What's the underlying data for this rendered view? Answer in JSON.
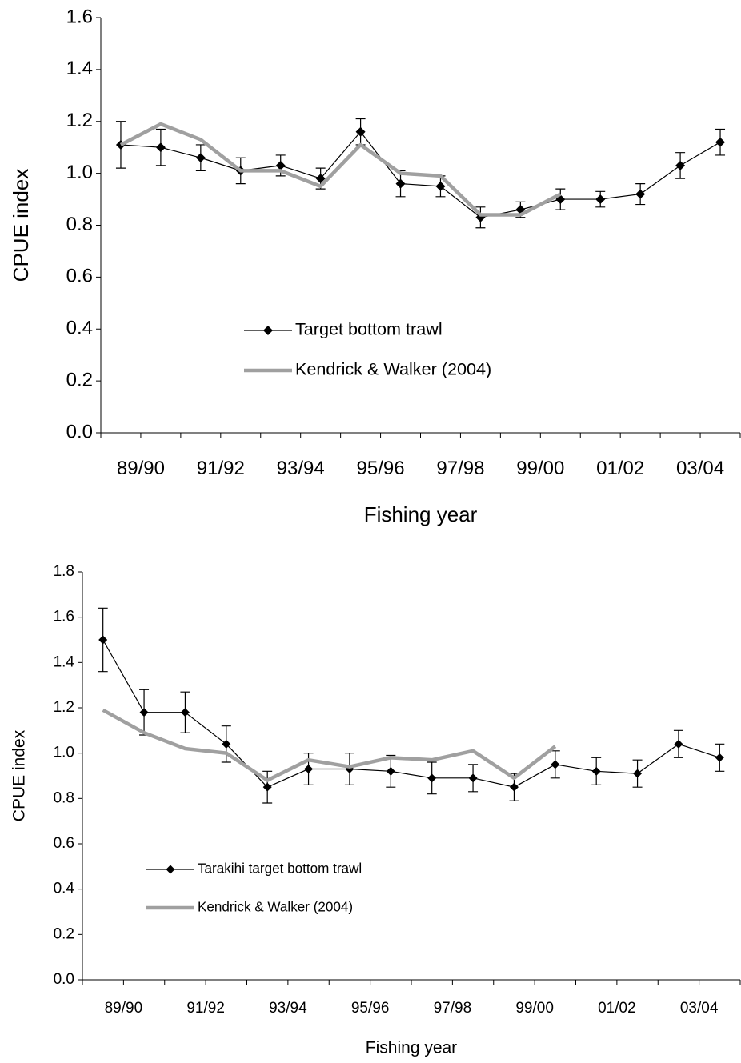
{
  "chart_data": [
    {
      "type": "line",
      "x_label": "Fishing year",
      "y_label": "CPUE index",
      "categories": [
        "89/90",
        null,
        "91/92",
        null,
        "93/94",
        null,
        "95/96",
        null,
        "97/98",
        null,
        "99/00",
        null,
        "01/02",
        null,
        "03/04",
        null
      ],
      "ylim": [
        0,
        1.6
      ],
      "yticks": [
        {
          "value": 0,
          "label": "0.0"
        },
        {
          "value": 0.2,
          "label": "0.2"
        },
        {
          "value": 0.4,
          "label": "0.4"
        },
        {
          "value": 0.6,
          "label": "0.6"
        },
        {
          "value": 0.8,
          "label": "0.8"
        },
        {
          "value": 1,
          "label": "1.0"
        },
        {
          "value": 1.2,
          "label": "1.2"
        },
        {
          "value": 1.4,
          "label": "1.4"
        },
        {
          "value": 1.6,
          "label": "1.6"
        }
      ],
      "series": [
        {
          "name": "Target bottom trawl",
          "color": "#000000",
          "marker": "diamond",
          "values": [
            1.11,
            1.1,
            1.06,
            1.01,
            1.03,
            0.98,
            1.16,
            0.96,
            0.95,
            0.83,
            0.86,
            0.9,
            0.9,
            0.92,
            1.03,
            1.12
          ],
          "errors": [
            0.09,
            0.07,
            0.05,
            0.05,
            0.04,
            0.04,
            0.05,
            0.05,
            0.04,
            0.04,
            0.03,
            0.04,
            0.03,
            0.04,
            0.05,
            0.05
          ]
        },
        {
          "name": "Kendrick & Walker (2004)",
          "color": "#a0a0a0",
          "values": [
            1.11,
            1.19,
            1.13,
            1.01,
            1.01,
            0.95,
            1.11,
            1.0,
            0.99,
            0.84,
            0.84,
            0.92,
            null,
            null,
            null,
            null
          ]
        }
      ]
    },
    {
      "type": "line",
      "x_label": "Fishing year",
      "y_label": "CPUE index",
      "categories": [
        "89/90",
        null,
        "91/92",
        null,
        "93/94",
        null,
        "95/96",
        null,
        "97/98",
        null,
        "99/00",
        null,
        "01/02",
        null,
        "03/04",
        null
      ],
      "ylim": [
        0,
        1.8
      ],
      "yticks": [
        {
          "value": 0,
          "label": "0.0"
        },
        {
          "value": 0.2,
          "label": "0.2"
        },
        {
          "value": 0.4,
          "label": "0.4"
        },
        {
          "value": 0.6,
          "label": "0.6"
        },
        {
          "value": 0.8,
          "label": "0.8"
        },
        {
          "value": 1,
          "label": "1.0"
        },
        {
          "value": 1.2,
          "label": "1.2"
        },
        {
          "value": 1.4,
          "label": "1.4"
        },
        {
          "value": 1.6,
          "label": "1.6"
        },
        {
          "value": 1.8,
          "label": "1.8"
        }
      ],
      "series": [
        {
          "name": "Tarakihi target bottom trawl",
          "color": "#000000",
          "marker": "diamond",
          "values": [
            1.5,
            1.18,
            1.18,
            1.04,
            0.85,
            0.93,
            0.93,
            0.92,
            0.89,
            0.89,
            0.85,
            0.95,
            0.92,
            0.91,
            1.04,
            0.98
          ],
          "errors": [
            0.14,
            0.1,
            0.09,
            0.08,
            0.07,
            0.07,
            0.07,
            0.07,
            0.07,
            0.06,
            0.06,
            0.06,
            0.06,
            0.06,
            0.06,
            0.06
          ]
        },
        {
          "name": "Kendrick & Walker (2004)",
          "color": "#a0a0a0",
          "values": [
            1.19,
            1.09,
            1.02,
            1.0,
            0.88,
            0.97,
            0.94,
            0.98,
            0.97,
            1.01,
            0.89,
            1.03,
            null,
            null,
            null,
            null
          ]
        }
      ]
    }
  ]
}
